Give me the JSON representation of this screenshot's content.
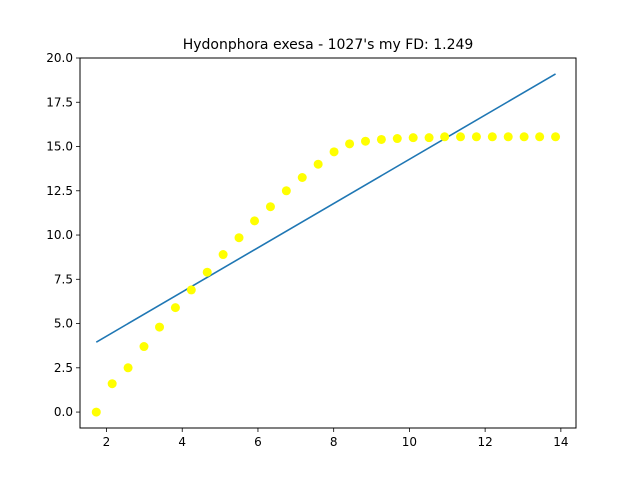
{
  "chart_data": {
    "type": "scatter",
    "title": "Hydonphora exesa - 1027's my FD: 1.249",
    "xlabel": "",
    "ylabel": "",
    "xlim": [
      1.3,
      14.4
    ],
    "ylim": [
      -0.9,
      20.0
    ],
    "grid": false,
    "xticks": [
      2,
      4,
      6,
      8,
      10,
      12,
      14
    ],
    "yticks": [
      0.0,
      2.5,
      5.0,
      7.5,
      10.0,
      12.5,
      15.0,
      17.5,
      20.0
    ],
    "xtick_labels": [
      "2",
      "4",
      "6",
      "8",
      "10",
      "12",
      "14"
    ],
    "ytick_labels": [
      "0.0",
      "2.5",
      "5.0",
      "7.5",
      "10.0",
      "12.5",
      "15.0",
      "17.5",
      "20.0"
    ],
    "series": [
      {
        "kind": "scatter",
        "color": "#ffff00",
        "points": [
          [
            1.73,
            0.0
          ],
          [
            2.15,
            1.6
          ],
          [
            2.57,
            2.5
          ],
          [
            2.99,
            3.7
          ],
          [
            3.4,
            4.8
          ],
          [
            3.82,
            5.9
          ],
          [
            4.24,
            6.9
          ],
          [
            4.66,
            7.9
          ],
          [
            5.08,
            8.9
          ],
          [
            5.5,
            9.85
          ],
          [
            5.91,
            10.8
          ],
          [
            6.33,
            11.6
          ],
          [
            6.75,
            12.5
          ],
          [
            7.17,
            13.25
          ],
          [
            7.59,
            14.0
          ],
          [
            8.01,
            14.7
          ],
          [
            8.42,
            15.15
          ],
          [
            8.84,
            15.3
          ],
          [
            9.26,
            15.4
          ],
          [
            9.68,
            15.45
          ],
          [
            10.1,
            15.5
          ],
          [
            10.52,
            15.5
          ],
          [
            10.93,
            15.55
          ],
          [
            11.35,
            15.55
          ],
          [
            11.77,
            15.55
          ],
          [
            12.19,
            15.55
          ],
          [
            12.61,
            15.55
          ],
          [
            13.03,
            15.55
          ],
          [
            13.44,
            15.55
          ],
          [
            13.86,
            15.55
          ]
        ]
      },
      {
        "kind": "line",
        "color": "#1f77b4",
        "points": [
          [
            1.73,
            3.95
          ],
          [
            13.86,
            19.1
          ]
        ]
      }
    ]
  }
}
